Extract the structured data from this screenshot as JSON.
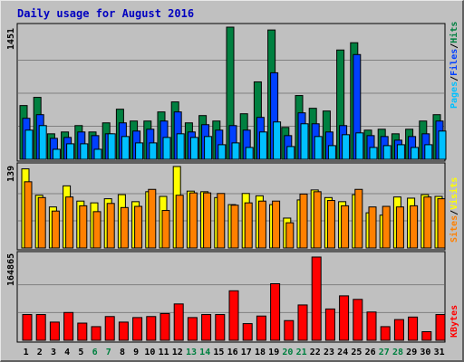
{
  "title": "Daily usage for August 2016",
  "colors": {
    "background": "#C0C0C0",
    "panel": "#C0C0C0",
    "title": "#0000C0",
    "hits": "#008040",
    "files": "#0040FF",
    "pages": "#00C0FF",
    "visits": "#FFFF00",
    "sites": "#FF8000",
    "kbytes": "#FF0000",
    "weekday_label": "#000000",
    "weekend_label": "#008040"
  },
  "chart_data": [
    {
      "type": "bar",
      "name": "hits-files-pages",
      "ymax_label": "1451",
      "ymax": 1451,
      "legend": [
        "Pages",
        "/",
        "Files",
        "/",
        "Hits"
      ],
      "categories": [
        "1",
        "2",
        "3",
        "4",
        "5",
        "6",
        "7",
        "8",
        "9",
        "10",
        "11",
        "12",
        "13",
        "14",
        "15",
        "16",
        "17",
        "18",
        "19",
        "20",
        "21",
        "22",
        "23",
        "24",
        "25",
        "26",
        "27",
        "28",
        "29",
        "30",
        "31"
      ],
      "series": [
        {
          "name": "Hits",
          "values": [
            590,
            680,
            280,
            300,
            370,
            300,
            400,
            550,
            420,
            420,
            520,
            630,
            400,
            480,
            420,
            1451,
            500,
            850,
            1420,
            350,
            700,
            560,
            530,
            1200,
            1280,
            320,
            330,
            280,
            330,
            420,
            490
          ]
        },
        {
          "name": "Files",
          "values": [
            450,
            490,
            230,
            240,
            300,
            260,
            280,
            400,
            310,
            330,
            420,
            520,
            300,
            380,
            320,
            370,
            320,
            460,
            950,
            260,
            510,
            390,
            300,
            370,
            1150,
            260,
            250,
            210,
            250,
            280,
            420
          ]
        },
        {
          "name": "Pages",
          "values": [
            320,
            370,
            110,
            170,
            170,
            110,
            280,
            250,
            180,
            180,
            240,
            280,
            240,
            250,
            160,
            180,
            130,
            300,
            410,
            140,
            390,
            250,
            150,
            270,
            290,
            130,
            150,
            160,
            130,
            160,
            310
          ]
        }
      ]
    },
    {
      "type": "bar",
      "name": "visits-sites",
      "ymax_label": "139",
      "ymax": 139,
      "legend": [
        "Sites",
        "/",
        "Visits"
      ],
      "categories": [
        "1",
        "2",
        "3",
        "4",
        "5",
        "6",
        "7",
        "8",
        "9",
        "10",
        "11",
        "12",
        "13",
        "14",
        "15",
        "16",
        "17",
        "18",
        "19",
        "20",
        "21",
        "22",
        "23",
        "24",
        "25",
        "26",
        "27",
        "28",
        "29",
        "30",
        "31"
      ],
      "series": [
        {
          "name": "Visits",
          "values": [
            135,
            90,
            70,
            106,
            80,
            77,
            84,
            91,
            79,
            96,
            88,
            139,
            97,
            96,
            86,
            74,
            93,
            89,
            74,
            51,
            82,
            99,
            86,
            79,
            91,
            60,
            56,
            87,
            85,
            91,
            88
          ]
        },
        {
          "name": "Sites",
          "values": [
            113,
            86,
            63,
            87,
            72,
            62,
            76,
            69,
            71,
            100,
            64,
            90,
            94,
            94,
            93,
            73,
            77,
            80,
            80,
            43,
            92,
            96,
            81,
            72,
            100,
            70,
            71,
            70,
            72,
            87,
            84
          ]
        }
      ]
    },
    {
      "type": "bar",
      "name": "kbytes",
      "ymax_label": "164865",
      "ymax": 164865,
      "legend": [
        "KBytes"
      ],
      "categories": [
        "1",
        "2",
        "3",
        "4",
        "5",
        "6",
        "7",
        "8",
        "9",
        "10",
        "11",
        "12",
        "13",
        "14",
        "15",
        "16",
        "17",
        "18",
        "19",
        "20",
        "21",
        "22",
        "23",
        "24",
        "25",
        "26",
        "27",
        "28",
        "29",
        "30",
        "31"
      ],
      "series": [
        {
          "name": "KBytes",
          "values": [
            51000,
            51000,
            36000,
            55000,
            34000,
            27000,
            47000,
            36000,
            45000,
            47000,
            53000,
            72000,
            45000,
            51000,
            51000,
            98000,
            33000,
            48000,
            112000,
            39000,
            70000,
            164865,
            62000,
            88000,
            81000,
            56000,
            27000,
            41000,
            46000,
            17000,
            51000
          ]
        }
      ]
    }
  ],
  "x_labels": {
    "days": [
      "1",
      "2",
      "3",
      "4",
      "5",
      "6",
      "7",
      "8",
      "9",
      "10",
      "11",
      "12",
      "13",
      "14",
      "15",
      "16",
      "17",
      "18",
      "19",
      "20",
      "21",
      "22",
      "23",
      "24",
      "25",
      "26",
      "27",
      "28",
      "29",
      "30",
      "31"
    ],
    "weekend_days": [
      "6",
      "7",
      "13",
      "14",
      "20",
      "21",
      "27",
      "28"
    ]
  }
}
